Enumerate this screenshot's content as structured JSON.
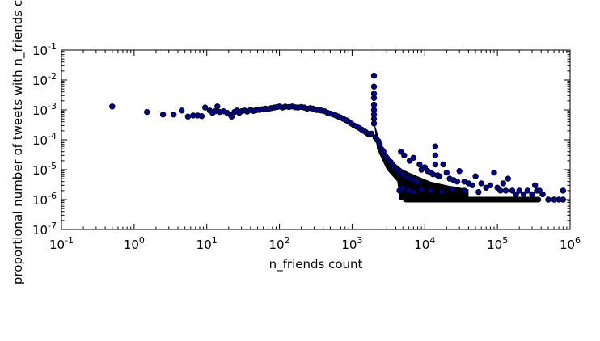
{
  "chart_data": {
    "type": "scatter",
    "title": "",
    "xlabel": "n_friends count",
    "ylabel": "proportional number of tweets with n_friends c",
    "xscale": "log",
    "yscale": "log",
    "xlim": [
      0.1,
      1000000
    ],
    "ylim": [
      1e-07,
      0.1
    ],
    "grid": false,
    "legend": "none",
    "marker_color": "#00008B",
    "marker_edge_color": "#000000",
    "x_ticks": [
      {
        "base": "10",
        "exp": "-1",
        "value": 0.1
      },
      {
        "base": "10",
        "exp": "0",
        "value": 1
      },
      {
        "base": "10",
        "exp": "1",
        "value": 10
      },
      {
        "base": "10",
        "exp": "2",
        "value": 100
      },
      {
        "base": "10",
        "exp": "3",
        "value": 1000
      },
      {
        "base": "10",
        "exp": "4",
        "value": 10000
      },
      {
        "base": "10",
        "exp": "5",
        "value": 100000
      },
      {
        "base": "10",
        "exp": "6",
        "value": 1000000
      }
    ],
    "y_ticks": [
      {
        "base": "10",
        "exp": "-1",
        "value": 0.1
      },
      {
        "base": "10",
        "exp": "-2",
        "value": 0.01
      },
      {
        "base": "10",
        "exp": "-3",
        "value": 0.001
      },
      {
        "base": "10",
        "exp": "-4",
        "value": 0.0001
      },
      {
        "base": "10",
        "exp": "-5",
        "value": 1e-05
      },
      {
        "base": "10",
        "exp": "-6",
        "value": 1e-06
      },
      {
        "base": "10",
        "exp": "-7",
        "value": 1e-07
      }
    ],
    "points": [
      [
        0.5,
        0.0013
      ],
      [
        1.5,
        0.00085
      ],
      [
        2.5,
        0.0007
      ],
      [
        3.5,
        0.0007
      ],
      [
        4.5,
        0.00095
      ],
      [
        5.5,
        0.0006
      ],
      [
        6.5,
        0.00065
      ],
      [
        7.5,
        0.00065
      ],
      [
        8.5,
        0.00062
      ],
      [
        9.5,
        0.0012
      ],
      [
        11,
        0.00095
      ],
      [
        12,
        0.0008
      ],
      [
        13,
        0.0009
      ],
      [
        14,
        0.0013
      ],
      [
        15,
        0.00085
      ],
      [
        17,
        0.0009
      ],
      [
        19,
        0.0008
      ],
      [
        21,
        0.0007
      ],
      [
        22,
        0.0006
      ],
      [
        24,
        0.00085
      ],
      [
        26,
        0.00095
      ],
      [
        28,
        0.0008
      ],
      [
        30,
        0.0009
      ],
      [
        33,
        0.00095
      ],
      [
        36,
        0.00088
      ],
      [
        40,
        0.001
      ],
      [
        44,
        0.00092
      ],
      [
        48,
        0.00098
      ],
      [
        53,
        0.001
      ],
      [
        58,
        0.00105
      ],
      [
        64,
        0.0011
      ],
      [
        70,
        0.00105
      ],
      [
        77,
        0.00115
      ],
      [
        85,
        0.0012
      ],
      [
        93,
        0.00125
      ],
      [
        100,
        0.0013
      ],
      [
        110,
        0.0012
      ],
      [
        120,
        0.00128
      ],
      [
        135,
        0.00125
      ],
      [
        150,
        0.0013
      ],
      [
        165,
        0.00122
      ],
      [
        180,
        0.0012
      ],
      [
        200,
        0.00125
      ],
      [
        220,
        0.0012
      ],
      [
        240,
        0.0011
      ],
      [
        265,
        0.00115
      ],
      [
        290,
        0.0011
      ],
      [
        320,
        0.001
      ],
      [
        350,
        0.00098
      ],
      [
        380,
        0.00095
      ],
      [
        420,
        0.0009
      ],
      [
        460,
        0.0008
      ],
      [
        500,
        0.00075
      ],
      [
        550,
        0.0007
      ],
      [
        600,
        0.00065
      ],
      [
        650,
        0.0006
      ],
      [
        700,
        0.00055
      ],
      [
        760,
        0.0005
      ],
      [
        830,
        0.00045
      ],
      [
        900,
        0.0004
      ],
      [
        980,
        0.00035
      ],
      [
        1060,
        0.0003
      ],
      [
        1150,
        0.00028
      ],
      [
        1250,
        0.00025
      ],
      [
        1350,
        0.00022
      ],
      [
        1450,
        0.0002
      ],
      [
        1550,
        0.00018
      ],
      [
        1650,
        0.00016
      ],
      [
        1750,
        0.00015
      ],
      [
        1850,
        0.00016
      ],
      [
        2000,
        0.014
      ],
      [
        2000,
        0.006
      ],
      [
        2000,
        0.0035
      ],
      [
        2000,
        0.0025
      ],
      [
        2000,
        0.0015
      ],
      [
        2000,
        0.001
      ],
      [
        2000,
        0.0007
      ],
      [
        2000,
        0.0005
      ],
      [
        2000,
        0.00035
      ],
      [
        2100,
        0.00012
      ],
      [
        2200,
        0.0001
      ],
      [
        2300,
        9e-05
      ],
      [
        2400,
        7e-05
      ],
      [
        2500,
        5e-05
      ],
      [
        2600,
        4.5e-05
      ],
      [
        2700,
        4e-05
      ],
      [
        2800,
        3e-05
      ],
      [
        2900,
        2.8e-05
      ],
      [
        3000,
        2.5e-05
      ],
      [
        3200,
        2e-05
      ],
      [
        3400,
        1.8e-05
      ],
      [
        3600,
        1.5e-05
      ],
      [
        3800,
        1.2e-05
      ],
      [
        4000,
        1e-05
      ],
      [
        4200,
        9.5e-06
      ],
      [
        4500,
        8.5e-06
      ],
      [
        4800,
        7.5e-06
      ],
      [
        5000,
        7e-06
      ],
      [
        5500,
        6e-06
      ],
      [
        6000,
        5.5e-06
      ],
      [
        6500,
        5e-06
      ],
      [
        7000,
        4.5e-06
      ],
      [
        7500,
        4e-06
      ],
      [
        8000,
        3.8e-06
      ],
      [
        4700,
        4e-05
      ],
      [
        5200,
        3e-05
      ],
      [
        6200,
        2e-05
      ],
      [
        7000,
        2.5e-05
      ],
      [
        8500,
        1.5e-05
      ],
      [
        9000,
        1e-05
      ],
      [
        10000,
        1.2e-05
      ],
      [
        11000,
        9e-06
      ],
      [
        12000,
        8e-06
      ],
      [
        13000,
        7e-06
      ],
      [
        14000,
        6e-05
      ],
      [
        14000,
        3e-05
      ],
      [
        14000,
        1.5e-05
      ],
      [
        15000,
        6.5e-06
      ],
      [
        16000,
        6e-06
      ],
      [
        18000,
        1.5e-05
      ],
      [
        20000,
        8e-06
      ],
      [
        22000,
        5e-06
      ],
      [
        25000,
        4.5e-06
      ],
      [
        28000,
        4e-06
      ],
      [
        30000,
        9e-06
      ],
      [
        35000,
        4e-06
      ],
      [
        40000,
        3.5e-06
      ],
      [
        45000,
        3e-06
      ],
      [
        50000,
        6e-06
      ],
      [
        60000,
        3.5e-06
      ],
      [
        70000,
        2.5e-06
      ],
      [
        80000,
        3e-06
      ],
      [
        90000,
        8e-06
      ],
      [
        100000,
        2.5e-06
      ],
      [
        110000,
        2e-06
      ],
      [
        120000,
        3.5e-06
      ],
      [
        130000,
        2e-06
      ],
      [
        140000,
        5e-06
      ],
      [
        160000,
        2e-06
      ],
      [
        180000,
        1.5e-06
      ],
      [
        200000,
        2e-06
      ],
      [
        230000,
        1.5e-06
      ],
      [
        260000,
        2e-06
      ],
      [
        300000,
        1.5e-06
      ],
      [
        330000,
        3e-06
      ],
      [
        350000,
        2e-06
      ],
      [
        380000,
        2e-06
      ],
      [
        420000,
        1.5e-06
      ],
      [
        500000,
        1e-06
      ],
      [
        600000,
        1e-06
      ],
      [
        700000,
        1e-06
      ],
      [
        800000,
        2e-06
      ],
      [
        800000,
        1e-06
      ],
      [
        4500,
        2e-06
      ],
      [
        5000,
        2.5e-06
      ],
      [
        6000,
        2e-06
      ],
      [
        7000,
        1.8e-06
      ],
      [
        9000,
        2.2e-06
      ],
      [
        12000,
        2e-06
      ],
      [
        17000,
        1.8e-06
      ],
      [
        24000,
        2.2e-06
      ],
      [
        35000,
        2e-06
      ],
      [
        55000,
        1.8e-06
      ]
    ],
    "floor_band": {
      "y": 1e-06,
      "x_from": 5000,
      "x_to": 400000
    }
  }
}
